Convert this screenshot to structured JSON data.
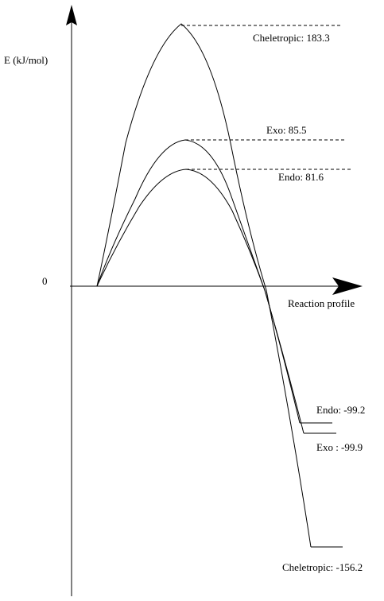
{
  "diagram": {
    "y_axis_label": "E (kJ/mol)",
    "x_axis_label": "Reaction profile",
    "origin_label": "0",
    "paths": [
      {
        "name": "Cheletropic",
        "ts_value": 183.3,
        "product_value": -156.2,
        "ts_label": "Cheletropic: 183.3",
        "product_label": "Cheletropic: -156.2"
      },
      {
        "name": "Exo",
        "ts_value": 85.5,
        "product_value": -99.9,
        "ts_label": "Exo: 85.5",
        "product_label": "Exo : -99.9"
      },
      {
        "name": "Endo",
        "ts_value": 81.6,
        "product_value": -99.2,
        "ts_label": "Endo: 81.6",
        "product_label": "Endo: -99.2"
      }
    ]
  }
}
